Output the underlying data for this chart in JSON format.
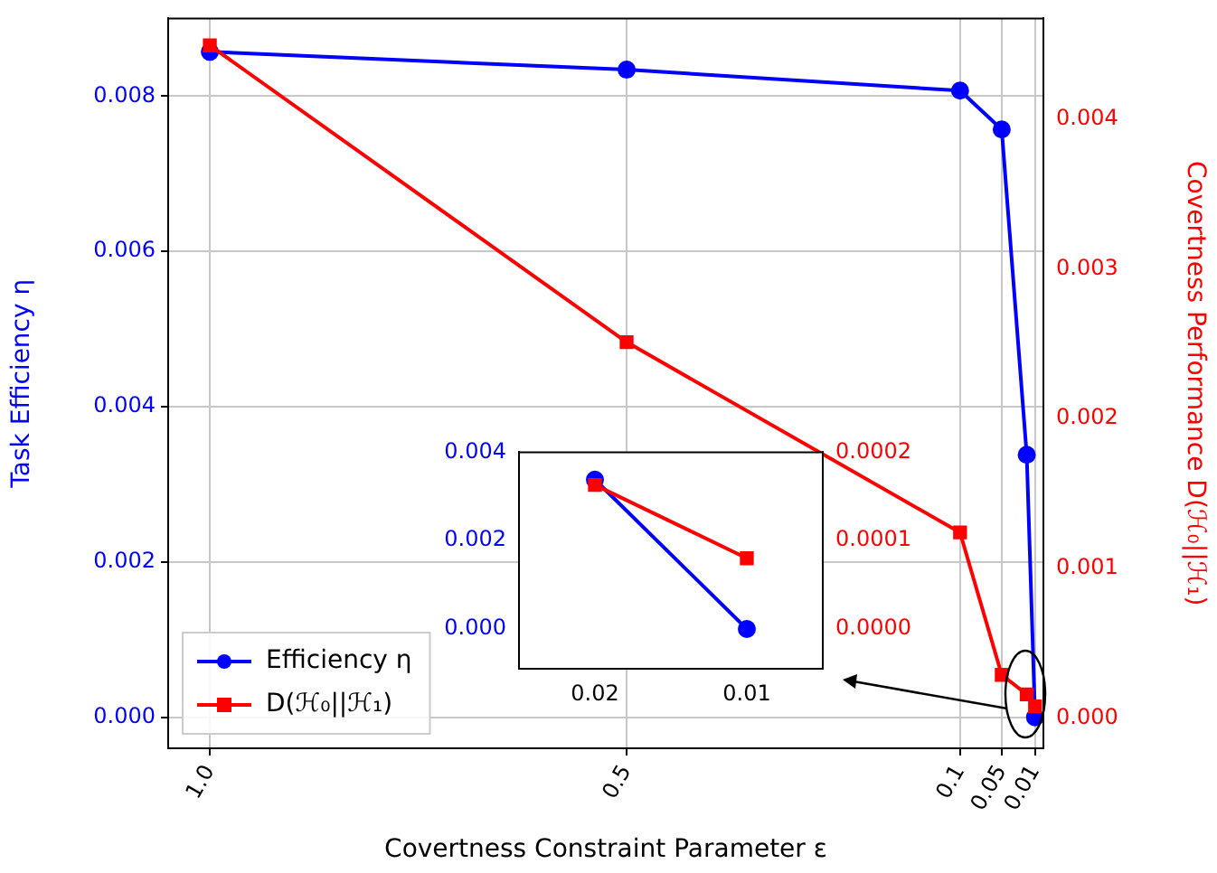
{
  "chart_data": [
    {
      "type": "line",
      "xlabel": "Covertness Constraint Parameter ε",
      "ylabel": "Task Efficiency η",
      "y2label": "Covertness Performance D(ℋ₀||ℋ₁)",
      "x": [
        1.0,
        0.5,
        0.1,
        0.05,
        0.02,
        0.01
      ],
      "series": [
        {
          "name": "Efficiency η",
          "color": "#0000ff",
          "marker": "circle",
          "values": [
            0.00857,
            0.00834,
            0.00807,
            0.00757,
            0.00338,
            0.0
          ]
        },
        {
          "name": "D(ℋ₀||ℋ₁)",
          "color": "#ff0000",
          "marker": "square",
          "axis": "y2",
          "values": [
            0.00449,
            0.00251,
            0.00124,
            0.00029,
            0.00016,
            8e-05
          ]
        }
      ],
      "xlim": [
        1.05,
        0.0
      ],
      "xticks": [
        {
          "value": 1,
          "label": "1.0"
        },
        0.5,
        0.1,
        0.05,
        0.01
      ],
      "ylim": [
        -0.0004,
        0.009
      ],
      "yticks": [
        {
          "value": 0,
          "label": "0.000"
        },
        0.002,
        0.004,
        0.006,
        0.008
      ],
      "y2lim": [
        -0.0002,
        0.00467
      ],
      "y2ticks": [
        {
          "value": 0,
          "label": "0.000"
        },
        0.001,
        0.002,
        0.003,
        0.004
      ],
      "grid": true,
      "legend": "bottom left",
      "line_style": "solid"
    },
    {
      "type": "line",
      "x": [
        0.02,
        0.01
      ],
      "series": [
        {
          "color": "#0000ff",
          "marker": "circle",
          "values": [
            0.00338,
            0.0
          ]
        },
        {
          "color": "#ff0000",
          "marker": "square",
          "axis": "y2",
          "values": [
            0.000163,
            8e-05
          ]
        }
      ],
      "xlim": [
        0.025,
        0.005
      ],
      "xticks": [
        0.02,
        0.01
      ],
      "ylim": [
        -0.0009,
        0.004
      ],
      "yticks": [
        {
          "value": 0,
          "label": "0.000"
        },
        0.002,
        0.004
      ],
      "y2lim": [
        -4.5e-05,
        0.0002
      ],
      "y2ticks": [
        {
          "value": 0,
          "label": "0.0000"
        },
        0.0001,
        0.0002
      ],
      "grid": false,
      "line_style": "solid"
    }
  ]
}
